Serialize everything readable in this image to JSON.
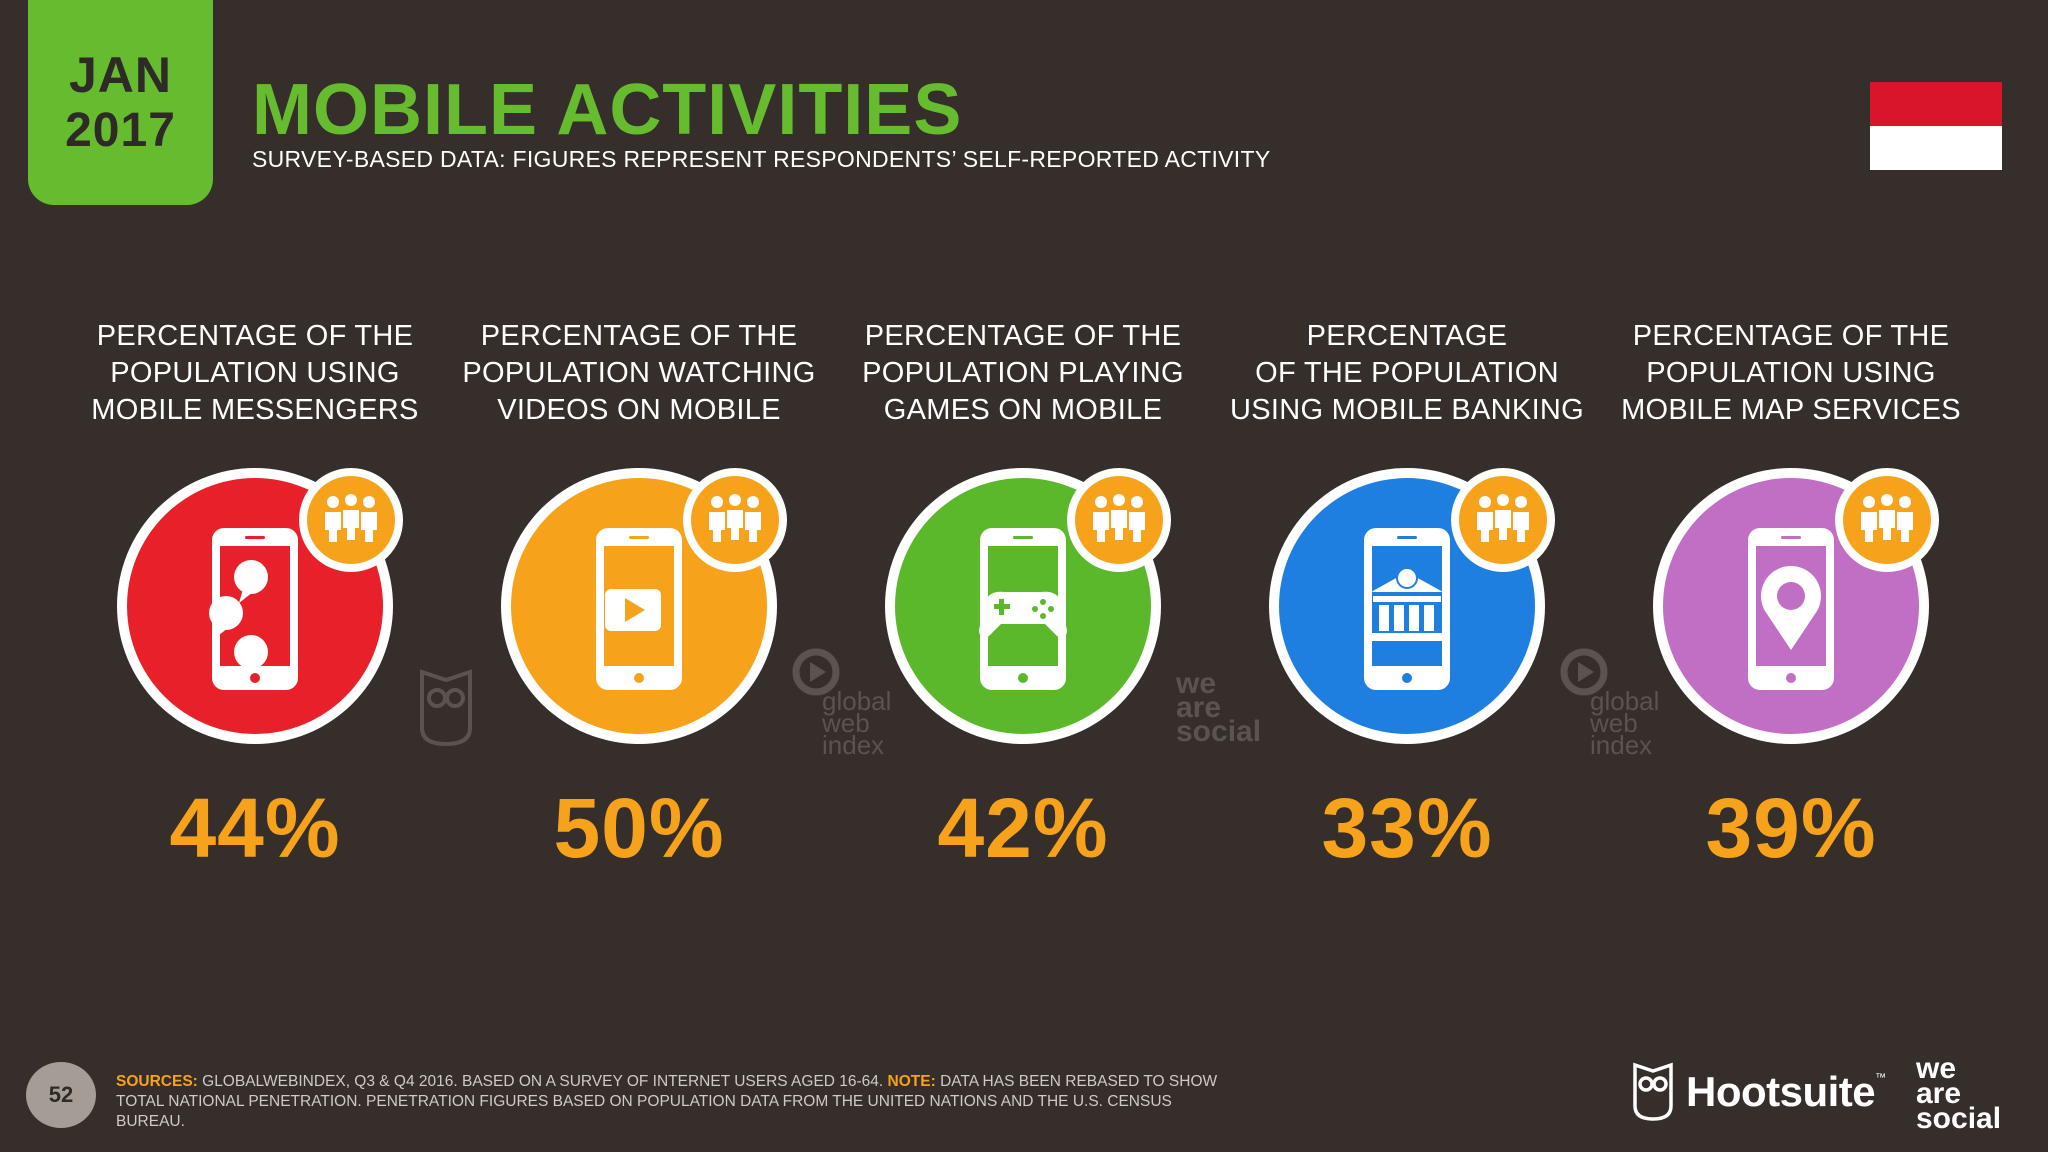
{
  "header": {
    "date_month": "JAN",
    "date_year": "2017",
    "title": "MOBILE ACTIVITIES",
    "subtitle": "SURVEY-BASED DATA: FIGURES REPRESENT RESPONDENTS’ SELF-REPORTED ACTIVITY"
  },
  "colors": {
    "background": "#352e2b",
    "accent_green": "#66bb2f",
    "value_orange": "#f7a21b",
    "flag_red": "#d9152b",
    "flag_white": "#ffffff"
  },
  "stats": [
    {
      "label": "PERCENTAGE OF THE\nPOPULATION USING\nMOBILE MESSENGERS",
      "value": "44%",
      "color": "#e8202a",
      "icon": "chat-bubbles-icon"
    },
    {
      "label": "PERCENTAGE OF THE\nPOPULATION WATCHING\nVIDEOS ON MOBILE",
      "value": "50%",
      "color": "#f7a21b",
      "icon": "play-icon"
    },
    {
      "label": "PERCENTAGE OF THE\nPOPULATION PLAYING\nGAMES ON MOBILE",
      "value": "42%",
      "color": "#5bb82b",
      "icon": "gamepad-icon"
    },
    {
      "label": "PERCENTAGE\nOF THE POPULATION\nUSING MOBILE BANKING",
      "value": "33%",
      "color": "#1f7fe0",
      "icon": "bank-icon"
    },
    {
      "label": "PERCENTAGE OF THE\nPOPULATION USING\nMOBILE MAP SERVICES",
      "value": "39%",
      "color": "#c06fc4",
      "icon": "map-pin-icon"
    }
  ],
  "watermarks": {
    "gwi": [
      "global",
      "web",
      "index"
    ],
    "was": [
      "we",
      "are",
      "social"
    ]
  },
  "footer": {
    "page_number": "52",
    "sources_label": "SOURCES:",
    "sources_text": " GLOBALWEBINDEX, Q3 & Q4 2016. BASED ON A SURVEY OF INTERNET USERS AGED 16-64. ",
    "note_label": "NOTE:",
    "note_text": " DATA HAS BEEN REBASED TO SHOW",
    "line2": "TOTAL NATIONAL PENETRATION. PENETRATION FIGURES BASED ON POPULATION DATA FROM THE UNITED NATIONS AND THE U.S. CENSUS BUREAU.",
    "hootsuite": "Hootsuite",
    "hootsuite_tm": "™",
    "was_logo": [
      "we",
      "are",
      "social"
    ]
  }
}
